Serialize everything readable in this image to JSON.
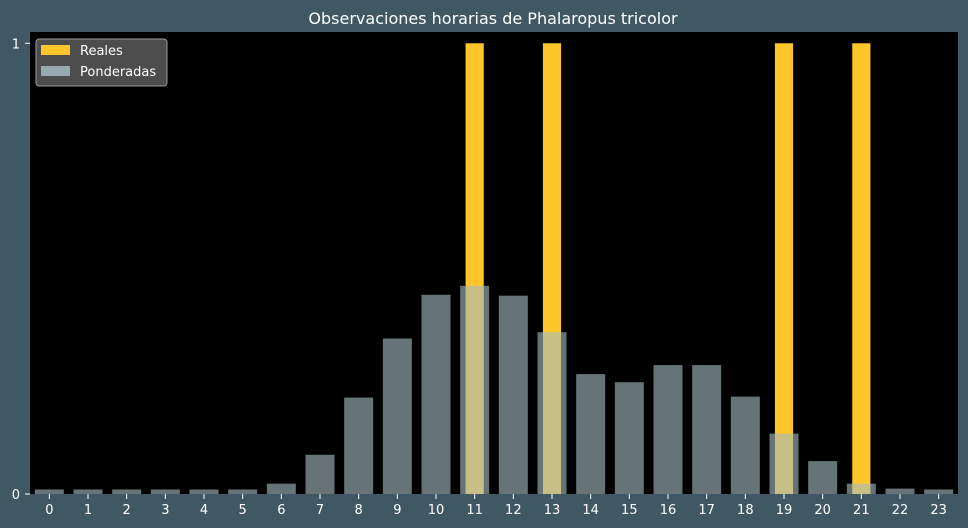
{
  "chart_data": {
    "type": "bar",
    "title": "Observaciones horarias de Phalaropus tricolor",
    "xlabel": "",
    "ylabel": "",
    "categories": [
      "0",
      "1",
      "2",
      "3",
      "4",
      "5",
      "6",
      "7",
      "8",
      "9",
      "10",
      "11",
      "12",
      "13",
      "14",
      "15",
      "16",
      "17",
      "18",
      "19",
      "20",
      "21",
      "22",
      "23"
    ],
    "ylim": [
      0,
      1.025
    ],
    "yticks": [
      0,
      1
    ],
    "grid": false,
    "legend_position": "top-left",
    "series": [
      {
        "name": "Reales",
        "color": "#ffc62b",
        "values": [
          0,
          0,
          0,
          0,
          0,
          0,
          0,
          0,
          0,
          0,
          0,
          1,
          0,
          1,
          0,
          0,
          0,
          0,
          0,
          1,
          0,
          1,
          0,
          0
        ]
      },
      {
        "name": "Ponderadas",
        "color": "#a6bcc0",
        "opacity": 0.62,
        "values": [
          0.01,
          0.01,
          0.01,
          0.01,
          0.01,
          0.01,
          0.023,
          0.087,
          0.214,
          0.345,
          0.442,
          0.462,
          0.44,
          0.359,
          0.266,
          0.248,
          0.286,
          0.286,
          0.216,
          0.134,
          0.073,
          0.023,
          0.012,
          0.01
        ]
      }
    ],
    "colors": {
      "page_background": "#405864",
      "plot_background": "#000000",
      "legend_background": "#5a5a5a"
    }
  }
}
